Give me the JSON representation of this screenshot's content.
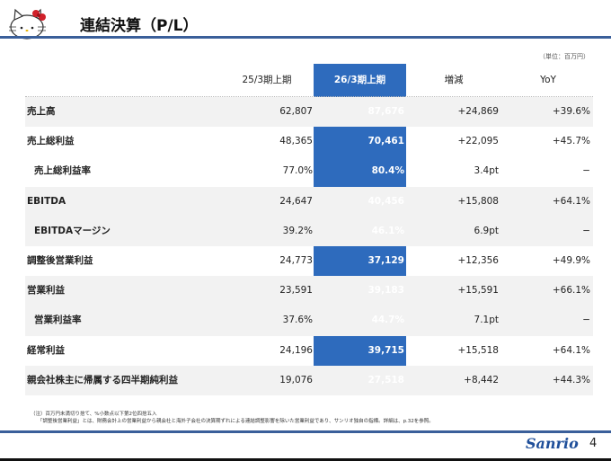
{
  "header": {
    "title": "連結決算（P/L）",
    "unit": "（単位：百万円）"
  },
  "columns": [
    "25/3期上期",
    "26/3期上期",
    "増減",
    "YoY"
  ],
  "rows": [
    {
      "label": "売上高",
      "prev": "62,807",
      "curr": "87,676",
      "diff": "+24,869",
      "yoy": "+39.6%",
      "indent": false,
      "shade": true
    },
    {
      "label": "売上総利益",
      "prev": "48,365",
      "curr": "70,461",
      "diff": "+22,095",
      "yoy": "+45.7%",
      "indent": false,
      "shade": false
    },
    {
      "label": "売上総利益率",
      "prev": "77.0%",
      "curr": "80.4%",
      "diff": "3.4pt",
      "yoy": "−",
      "indent": true,
      "shade": false
    },
    {
      "label": "EBITDA",
      "prev": "24,647",
      "curr": "40,456",
      "diff": "+15,808",
      "yoy": "+64.1%",
      "indent": false,
      "shade": true
    },
    {
      "label": "EBITDAマージン",
      "prev": "39.2%",
      "curr": "46.1%",
      "diff": "6.9pt",
      "yoy": "−",
      "indent": true,
      "shade": true
    },
    {
      "label": "調整後営業利益",
      "prev": "24,773",
      "curr": "37,129",
      "diff": "+12,356",
      "yoy": "+49.9%",
      "indent": false,
      "shade": false
    },
    {
      "label": "営業利益",
      "prev": "23,591",
      "curr": "39,183",
      "diff": "+15,591",
      "yoy": "+66.1%",
      "indent": false,
      "shade": true
    },
    {
      "label": "営業利益率",
      "prev": "37.6%",
      "curr": "44.7%",
      "diff": "7.1pt",
      "yoy": "−",
      "indent": true,
      "shade": true
    },
    {
      "label": "経常利益",
      "prev": "24,196",
      "curr": "39,715",
      "diff": "+15,518",
      "yoy": "+64.1%",
      "indent": false,
      "shade": false
    },
    {
      "label": "親会社株主に帰属する四半期純利益",
      "prev": "19,076",
      "curr": "27,518",
      "diff": "+8,442",
      "yoy": "+44.3%",
      "indent": false,
      "shade": true
    }
  ],
  "notes": [
    "（注）百万円未満切り捨て、%小数点以下第2位四捨五入",
    "「調整後営業利益」とは、財務会計上の営業利益から親会社と海外子会社の決算期ずれによる連結調整影響を除いた営業利益であり、サンリオ独自の指標。詳細は、p.32を参照。"
  ],
  "footer": {
    "brand": "Sanrio",
    "page": "4"
  },
  "colors": {
    "accent": "#2e6bbd",
    "rule": "#3a5f9a",
    "shade": "#f2f2f2"
  }
}
